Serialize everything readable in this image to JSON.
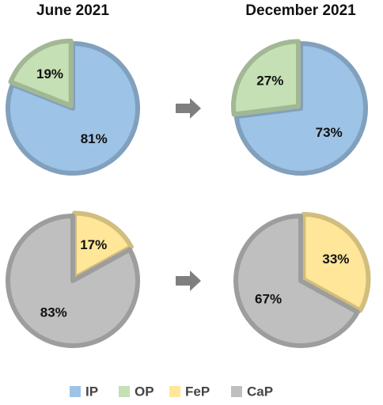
{
  "chart_data": [
    {
      "type": "pie",
      "title": "June 2021",
      "categories": [
        "IP",
        "OP"
      ],
      "values": [
        81,
        19
      ],
      "value_labels": [
        "81%",
        "19%"
      ],
      "colors": [
        "#9dc3e6",
        "#c5e0b4"
      ]
    },
    {
      "type": "pie",
      "title": "December 2021",
      "categories": [
        "IP",
        "OP"
      ],
      "values": [
        73,
        27
      ],
      "value_labels": [
        "73%",
        "27%"
      ],
      "colors": [
        "#9dc3e6",
        "#c5e0b4"
      ]
    },
    {
      "type": "pie",
      "categories": [
        "FeP",
        "CaP"
      ],
      "values": [
        17,
        83
      ],
      "value_labels": [
        "17%",
        "83%"
      ],
      "colors": [
        "#ffe699",
        "#bfbfbf"
      ]
    },
    {
      "type": "pie",
      "categories": [
        "FeP",
        "CaP"
      ],
      "values": [
        33,
        67
      ],
      "value_labels": [
        "33%",
        "67%"
      ],
      "colors": [
        "#ffe699",
        "#bfbfbf"
      ]
    }
  ],
  "legend": [
    {
      "name": "IP",
      "color": "#9dc3e6"
    },
    {
      "name": "OP",
      "color": "#c5e0b4"
    },
    {
      "name": "FeP",
      "color": "#ffe699"
    },
    {
      "name": "CaP",
      "color": "#bfbfbf"
    }
  ]
}
